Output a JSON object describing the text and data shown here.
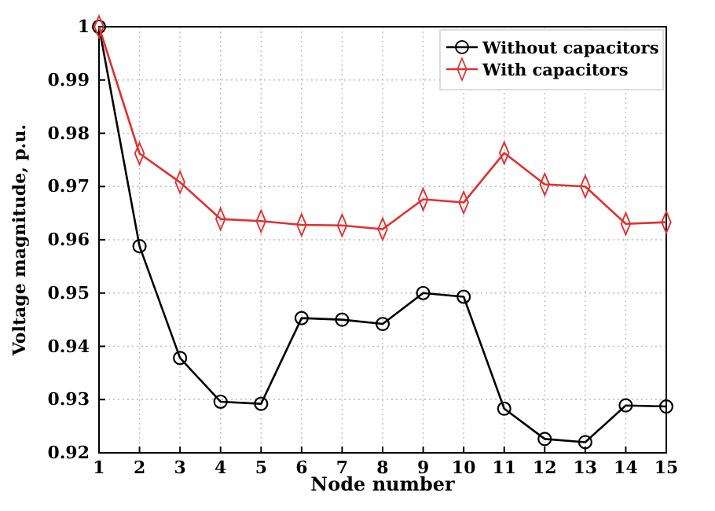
{
  "chart_data": {
    "type": "line",
    "xlabel": "Node number",
    "ylabel": "Voltage magnitude, p.u.",
    "x": [
      1,
      2,
      3,
      4,
      5,
      6,
      7,
      8,
      9,
      10,
      11,
      12,
      13,
      14,
      15
    ],
    "xlim": [
      1,
      15
    ],
    "xticks": [
      1,
      2,
      3,
      4,
      5,
      6,
      7,
      8,
      9,
      10,
      11,
      12,
      13,
      14,
      15
    ],
    "ylim": [
      0.92,
      1
    ],
    "yticks": [
      0.92,
      0.93,
      0.94,
      0.95,
      0.96,
      0.97,
      0.98,
      0.99,
      1
    ],
    "grid": true,
    "legend": "top right",
    "series": [
      {
        "name": "Without capacitors",
        "color": "#000000",
        "marker": "circle",
        "values": [
          1.0,
          0.9588,
          0.9378,
          0.9296,
          0.9292,
          0.9453,
          0.945,
          0.9442,
          0.95,
          0.9493,
          0.9283,
          0.9226,
          0.922,
          0.9289,
          0.9287
        ]
      },
      {
        "name": "With capacitors",
        "color": "#e03030",
        "marker": "diamond",
        "values": [
          1.0,
          0.9762,
          0.9708,
          0.9639,
          0.9635,
          0.9628,
          0.9627,
          0.962,
          0.9676,
          0.967,
          0.9763,
          0.9704,
          0.97,
          0.963,
          0.9633
        ]
      }
    ]
  }
}
